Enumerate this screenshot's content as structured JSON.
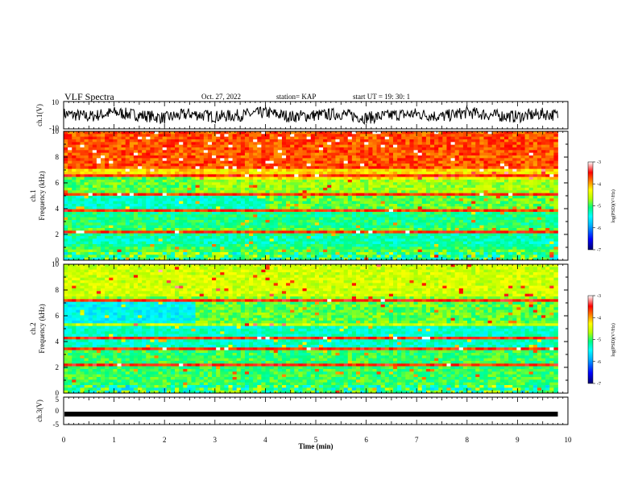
{
  "header": {
    "title": "VLF Spectra",
    "date": "Oct. 27, 2022",
    "station": "station= KAP",
    "start": "start  UT =   19: 30: 1"
  },
  "colors": {
    "spectrum_ramp": [
      "#000070",
      "#0000ff",
      "#00b4ff",
      "#00ffff",
      "#00ff80",
      "#b4ff00",
      "#ffff00",
      "#ff8000",
      "#ff0000",
      "#ffffff"
    ],
    "waveform": "#000000"
  },
  "chart_data": [
    {
      "name": "ch1-waveform",
      "type": "line",
      "ylabel": "ch.1(V)",
      "ylim": [
        -10,
        10
      ],
      "yticks": [
        "10",
        "-10"
      ],
      "xlim": [
        0,
        10
      ],
      "x_minutes": [
        0.0,
        0.5,
        1.0,
        1.5,
        2.0,
        2.5,
        3.0,
        3.5,
        4.0,
        4.5,
        5.0,
        5.5,
        6.0,
        6.5,
        7.0,
        7.5,
        8.0,
        8.5,
        9.0,
        9.5,
        9.8
      ],
      "y_volts": [
        1,
        -1,
        2,
        0,
        -2,
        1,
        -1,
        0,
        2,
        -1,
        0,
        1,
        -2,
        0,
        1,
        -1,
        2,
        0,
        -1,
        1,
        0
      ]
    },
    {
      "name": "ch1-spectrogram",
      "type": "heatmap",
      "ylabel": "ch.1\nFrequency (kHz)",
      "ylim": [
        0,
        10
      ],
      "yticks": [
        "0",
        "2",
        "4",
        "6",
        "8",
        "10"
      ],
      "xlim": [
        0,
        10
      ],
      "data_end_min": 9.8,
      "colorbar": {
        "label": "log(PSD)(V²/Hz)",
        "range": [
          -7,
          -3
        ],
        "ticks": [
          "-3",
          "-4",
          "-5",
          "-6",
          "-7"
        ]
      }
    },
    {
      "name": "ch2-spectrogram",
      "type": "heatmap",
      "ylabel": "ch.2\nFrequency (kHz)",
      "ylim": [
        0,
        10
      ],
      "yticks": [
        "0",
        "2",
        "4",
        "6",
        "8",
        "10"
      ],
      "xlim": [
        0,
        10
      ],
      "data_end_min": 9.8,
      "colorbar": {
        "label": "log(PSD)(V²/Hz)",
        "range": [
          -7,
          -3
        ],
        "ticks": [
          "-3",
          "-4",
          "-5",
          "-6",
          "-7"
        ]
      }
    },
    {
      "name": "ch3-waveform",
      "type": "line",
      "ylabel": "ch.3(V)",
      "ylim": [
        -5,
        5
      ],
      "yticks": [
        "5",
        "0",
        "-5"
      ],
      "xlim": [
        0,
        10
      ],
      "level_volts": -1.2,
      "data_end_min": 9.8
    }
  ],
  "x_axis": {
    "label": "Time (min)",
    "ticks": [
      "0",
      "1",
      "2",
      "3",
      "4",
      "5",
      "6",
      "7",
      "8",
      "9",
      "10"
    ]
  }
}
